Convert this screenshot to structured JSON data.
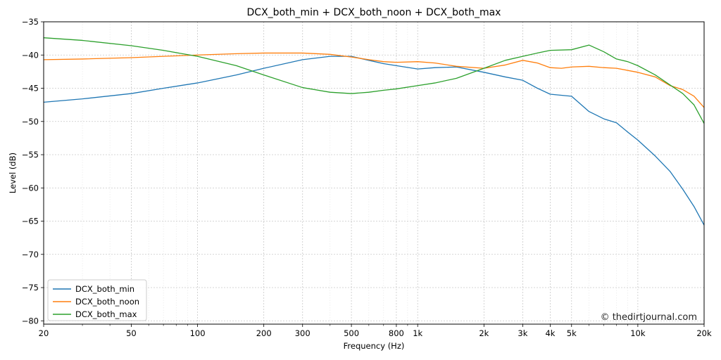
{
  "chart_data": {
    "type": "line",
    "title": "DCX_both_min + DCX_both_noon + DCX_both_max",
    "xlabel": "Frequency (Hz)",
    "ylabel": "Level (dB)",
    "xscale": "log",
    "xlim": [
      20,
      20000
    ],
    "ylim": [
      -80.5,
      -35
    ],
    "grid": true,
    "legend_position": "lower-left",
    "credit": "© thedirtjournal.com",
    "x_ticks": [
      {
        "value": 20,
        "label": "20"
      },
      {
        "value": 50,
        "label": "50"
      },
      {
        "value": 100,
        "label": "100"
      },
      {
        "value": 200,
        "label": "200"
      },
      {
        "value": 300,
        "label": "300"
      },
      {
        "value": 500,
        "label": "500"
      },
      {
        "value": 800,
        "label": "800"
      },
      {
        "value": 1000,
        "label": "1k"
      },
      {
        "value": 2000,
        "label": "2k"
      },
      {
        "value": 3000,
        "label": "3k"
      },
      {
        "value": 4000,
        "label": "4k"
      },
      {
        "value": 5000,
        "label": "5k"
      },
      {
        "value": 10000,
        "label": "10k"
      },
      {
        "value": 20000,
        "label": "20k"
      }
    ],
    "y_ticks": [
      -35,
      -40,
      -45,
      -50,
      -55,
      -60,
      -65,
      -70,
      -75,
      -80
    ],
    "series": [
      {
        "name": "DCX_both_min",
        "color": "#1f77b4",
        "points": [
          [
            20,
            -47.1
          ],
          [
            30,
            -46.6
          ],
          [
            50,
            -45.8
          ],
          [
            70,
            -45.0
          ],
          [
            100,
            -44.2
          ],
          [
            150,
            -43.0
          ],
          [
            200,
            -42.0
          ],
          [
            300,
            -40.7
          ],
          [
            400,
            -40.2
          ],
          [
            500,
            -40.2
          ],
          [
            600,
            -40.8
          ],
          [
            700,
            -41.3
          ],
          [
            800,
            -41.6
          ],
          [
            1000,
            -42.1
          ],
          [
            1200,
            -41.9
          ],
          [
            1500,
            -41.8
          ],
          [
            2000,
            -42.6
          ],
          [
            2500,
            -43.3
          ],
          [
            3000,
            -43.8
          ],
          [
            3500,
            -45.0
          ],
          [
            4000,
            -45.9
          ],
          [
            5000,
            -46.2
          ],
          [
            6000,
            -48.5
          ],
          [
            7000,
            -49.6
          ],
          [
            8000,
            -50.2
          ],
          [
            9000,
            -51.6
          ],
          [
            10000,
            -52.8
          ],
          [
            12000,
            -55.2
          ],
          [
            14000,
            -57.5
          ],
          [
            16000,
            -60.2
          ],
          [
            18000,
            -62.8
          ],
          [
            20000,
            -65.6
          ]
        ]
      },
      {
        "name": "DCX_both_noon",
        "color": "#ff7f0e",
        "points": [
          [
            20,
            -40.7
          ],
          [
            30,
            -40.6
          ],
          [
            50,
            -40.4
          ],
          [
            70,
            -40.2
          ],
          [
            100,
            -40.0
          ],
          [
            150,
            -39.8
          ],
          [
            200,
            -39.7
          ],
          [
            300,
            -39.7
          ],
          [
            400,
            -39.9
          ],
          [
            500,
            -40.3
          ],
          [
            600,
            -40.7
          ],
          [
            700,
            -41.0
          ],
          [
            800,
            -41.1
          ],
          [
            1000,
            -41.0
          ],
          [
            1200,
            -41.2
          ],
          [
            1500,
            -41.7
          ],
          [
            2000,
            -42.0
          ],
          [
            2500,
            -41.5
          ],
          [
            3000,
            -40.8
          ],
          [
            3500,
            -41.2
          ],
          [
            4000,
            -41.9
          ],
          [
            4500,
            -42.0
          ],
          [
            5000,
            -41.8
          ],
          [
            6000,
            -41.7
          ],
          [
            7000,
            -41.9
          ],
          [
            8000,
            -42.0
          ],
          [
            10000,
            -42.6
          ],
          [
            12000,
            -43.3
          ],
          [
            14000,
            -44.6
          ],
          [
            16000,
            -45.2
          ],
          [
            18000,
            -46.2
          ],
          [
            20000,
            -47.9
          ]
        ]
      },
      {
        "name": "DCX_both_max",
        "color": "#2ca02c",
        "points": [
          [
            20,
            -37.4
          ],
          [
            30,
            -37.8
          ],
          [
            50,
            -38.6
          ],
          [
            70,
            -39.3
          ],
          [
            100,
            -40.2
          ],
          [
            150,
            -41.6
          ],
          [
            200,
            -43.0
          ],
          [
            300,
            -44.9
          ],
          [
            400,
            -45.6
          ],
          [
            500,
            -45.8
          ],
          [
            600,
            -45.6
          ],
          [
            700,
            -45.3
          ],
          [
            800,
            -45.1
          ],
          [
            1000,
            -44.6
          ],
          [
            1200,
            -44.2
          ],
          [
            1500,
            -43.5
          ],
          [
            2000,
            -42.0
          ],
          [
            2500,
            -40.8
          ],
          [
            3000,
            -40.2
          ],
          [
            3500,
            -39.7
          ],
          [
            4000,
            -39.3
          ],
          [
            5000,
            -39.2
          ],
          [
            6000,
            -38.5
          ],
          [
            7000,
            -39.5
          ],
          [
            8000,
            -40.6
          ],
          [
            9000,
            -41.0
          ],
          [
            10000,
            -41.6
          ],
          [
            12000,
            -43.0
          ],
          [
            14000,
            -44.5
          ],
          [
            16000,
            -45.8
          ],
          [
            18000,
            -47.5
          ],
          [
            20000,
            -50.3
          ]
        ]
      }
    ]
  }
}
